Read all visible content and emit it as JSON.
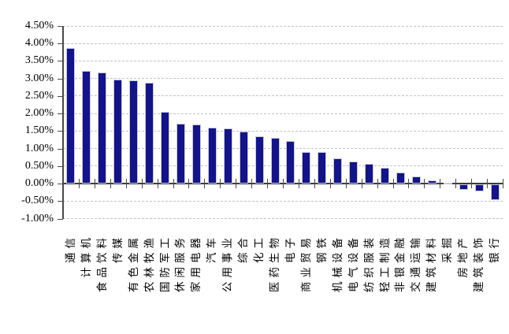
{
  "chart_data": {
    "type": "bar",
    "title": "",
    "xlabel": "",
    "ylabel": "",
    "value_unit": "%",
    "legend": "none",
    "grid": "horizontal-dashed",
    "ylim": [
      -1.0,
      4.5
    ],
    "ytick_step": 0.5,
    "ytick_labels": [
      "4.50%",
      "4.00%",
      "3.50%",
      "3.00%",
      "2.50%",
      "2.00%",
      "1.50%",
      "1.00%",
      "0.50%",
      "0.00%",
      "-0.50%",
      "-1.00%"
    ],
    "categories": [
      "通信",
      "计算机",
      "食品饮料",
      "传媒",
      "有色金属",
      "农林牧渔",
      "国防军工",
      "休闲服务",
      "家用电器",
      "汽车",
      "公用事业",
      "综合",
      "化工",
      "医药生物",
      "电子",
      "商业贸易",
      "钢铁",
      "机械设备",
      "电气设备",
      "纺织服装",
      "轻工制造",
      "非银金融",
      "交通运输",
      "建筑材料",
      "采掘",
      "房地产",
      "建筑装饰",
      "银行"
    ],
    "values": [
      3.86,
      3.21,
      3.18,
      2.97,
      2.95,
      2.88,
      2.05,
      1.72,
      1.68,
      1.6,
      1.58,
      1.48,
      1.36,
      1.31,
      1.22,
      0.91,
      0.9,
      0.72,
      0.63,
      0.57,
      0.44,
      0.31,
      0.21,
      0.1,
      0.02,
      -0.16,
      -0.2,
      -0.45
    ],
    "colors": {
      "bar": "#13138b",
      "bar_border": "#c9c9dc",
      "gridline": "#c4c4c4",
      "axis": "#4a4a4a",
      "text": "#000000",
      "background": "#ffffff"
    }
  }
}
